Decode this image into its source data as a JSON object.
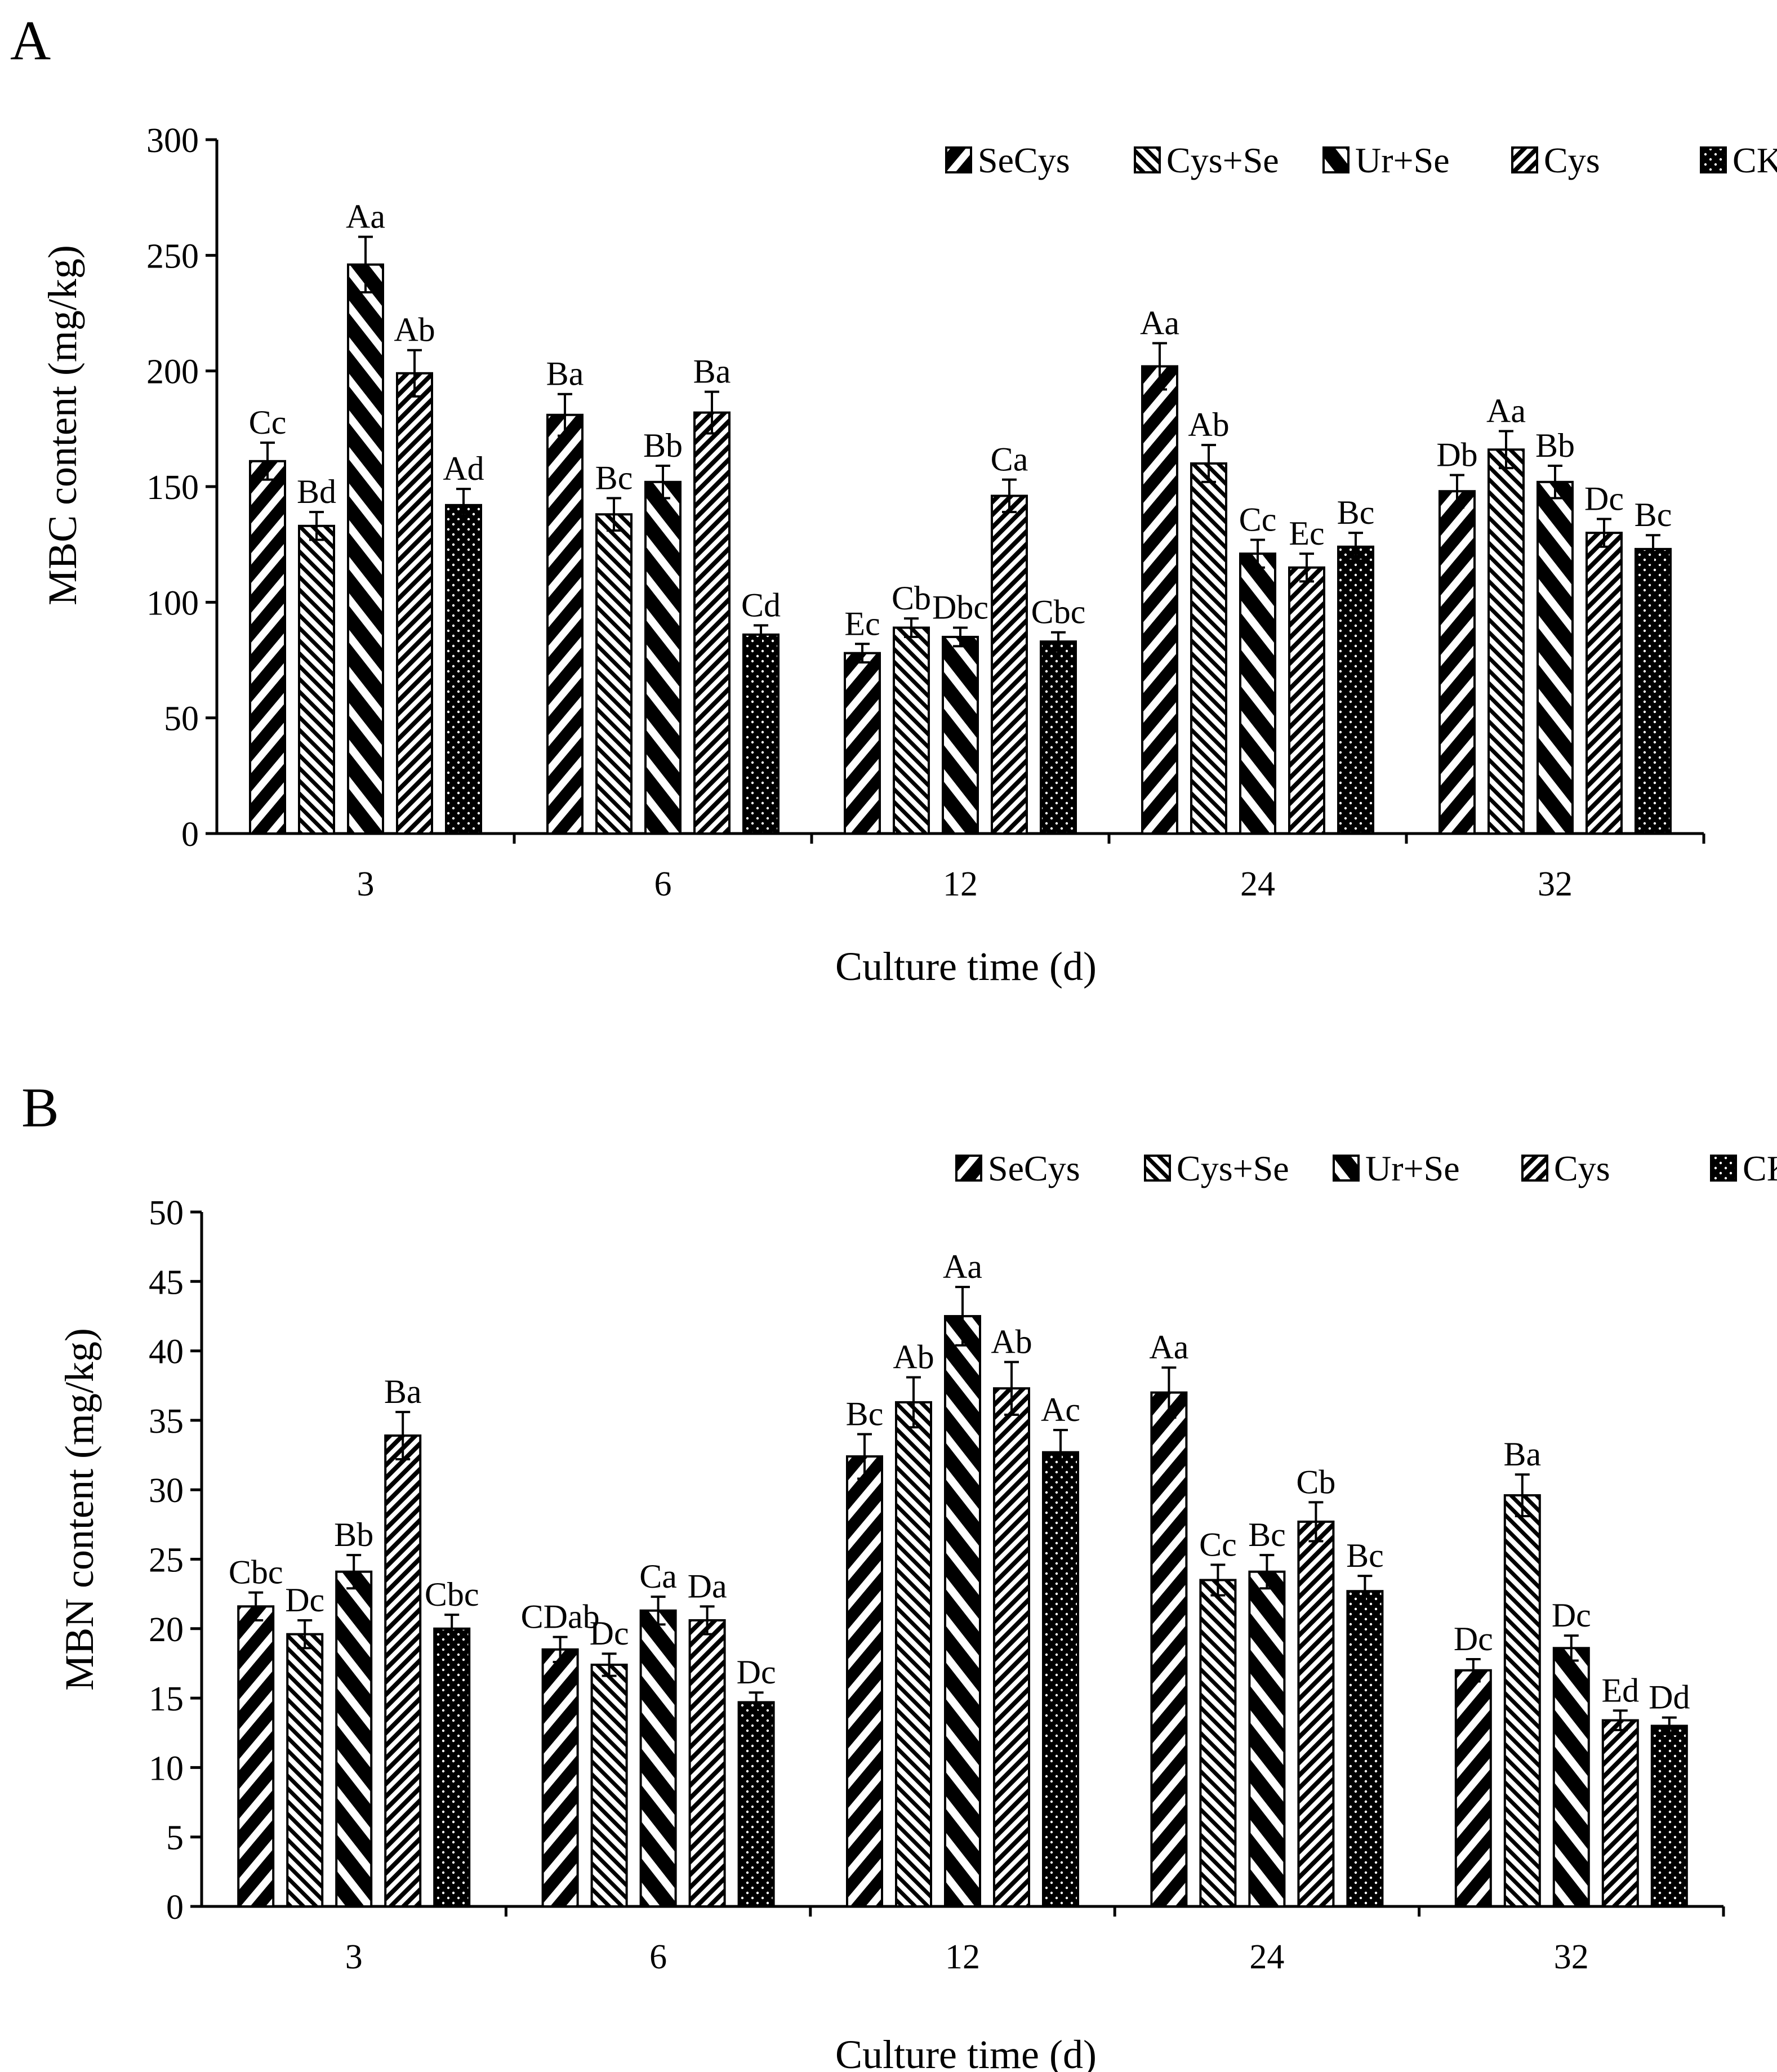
{
  "chart_data": [
    {
      "panel_label": "A",
      "type": "bar",
      "categories": [
        "3",
        "6",
        "12",
        "24",
        "32"
      ],
      "xlabel": "Culture time (d)",
      "ylabel": "MBC content (mg/kg)",
      "ylim": [
        0,
        300
      ],
      "yticks": [
        "0",
        "50",
        "100",
        "150",
        "200",
        "250",
        "300"
      ],
      "legend_position": "top-right",
      "series": [
        {
          "name": "SeCys",
          "values": [
            161,
            181,
            78,
            202,
            148
          ],
          "errors": [
            8,
            9,
            4,
            10,
            7
          ],
          "labels": [
            "Cc",
            "Ba",
            "Ec",
            "Aa",
            "Db"
          ]
        },
        {
          "name": "Cys+Se",
          "values": [
            133,
            138,
            89,
            160,
            166
          ],
          "errors": [
            6,
            7,
            4,
            8,
            8
          ],
          "labels": [
            "Bd",
            "Bc",
            "Cb",
            "Ab",
            "Aa"
          ]
        },
        {
          "name": "Ur+Se",
          "values": [
            246,
            152,
            85,
            121,
            152
          ],
          "errors": [
            12,
            7,
            4,
            6,
            7
          ],
          "labels": [
            "Aa",
            "Bb",
            "Dbc",
            "Cc",
            "Bb"
          ]
        },
        {
          "name": "Cys",
          "values": [
            199,
            182,
            146,
            115,
            130
          ],
          "errors": [
            10,
            9,
            7,
            6,
            6
          ],
          "labels": [
            "Ab",
            "Ba",
            "Ca",
            "Ec",
            "Dc"
          ]
        },
        {
          "name": "CK",
          "values": [
            142,
            86,
            83,
            124,
            123
          ],
          "errors": [
            7,
            4,
            4,
            6,
            6
          ],
          "labels": [
            "Ad",
            "Cd",
            "Cbc",
            "Bc",
            "Bc"
          ]
        }
      ]
    },
    {
      "panel_label": "B",
      "type": "bar",
      "categories": [
        "3",
        "6",
        "12",
        "24",
        "32"
      ],
      "xlabel": "Culture time (d)",
      "ylabel": "MBN content (mg/kg)",
      "ylim": [
        0,
        50
      ],
      "yticks": [
        "0",
        "5",
        "10",
        "15",
        "20",
        "25",
        "30",
        "35",
        "40",
        "45",
        "50"
      ],
      "legend_position": "top-right",
      "series": [
        {
          "name": "SeCys",
          "values": [
            21.6,
            18.5,
            32.4,
            37.0,
            17.0
          ],
          "errors": [
            1.0,
            0.9,
            1.6,
            1.8,
            0.8
          ],
          "labels": [
            "Cbc",
            "CDab",
            "Bc",
            "Aa",
            "Dc"
          ]
        },
        {
          "name": "Cys+Se",
          "values": [
            19.6,
            17.4,
            36.3,
            23.5,
            29.6
          ],
          "errors": [
            1.0,
            0.8,
            1.8,
            1.1,
            1.5
          ],
          "labels": [
            "Dc",
            "Dc",
            "Ab",
            "Cc",
            "Ba"
          ]
        },
        {
          "name": "Ur+Se",
          "values": [
            24.1,
            21.3,
            42.5,
            24.1,
            18.6
          ],
          "errors": [
            1.2,
            1.0,
            2.1,
            1.2,
            0.9
          ],
          "labels": [
            "Bb",
            "Ca",
            "Aa",
            "Bc",
            "Dc"
          ]
        },
        {
          "name": "Cys",
          "values": [
            33.9,
            20.6,
            37.3,
            27.7,
            13.4
          ],
          "errors": [
            1.7,
            1.0,
            1.9,
            1.4,
            0.7
          ],
          "labels": [
            "Ba",
            "Da",
            "Ab",
            "Cb",
            "Ed"
          ]
        },
        {
          "name": "CK",
          "values": [
            20.0,
            14.7,
            32.7,
            22.7,
            13.0
          ],
          "errors": [
            1.0,
            0.7,
            1.6,
            1.1,
            0.6
          ],
          "labels": [
            "Cbc",
            "Dc",
            "Ac",
            "Bc",
            "Dd"
          ]
        }
      ]
    }
  ]
}
